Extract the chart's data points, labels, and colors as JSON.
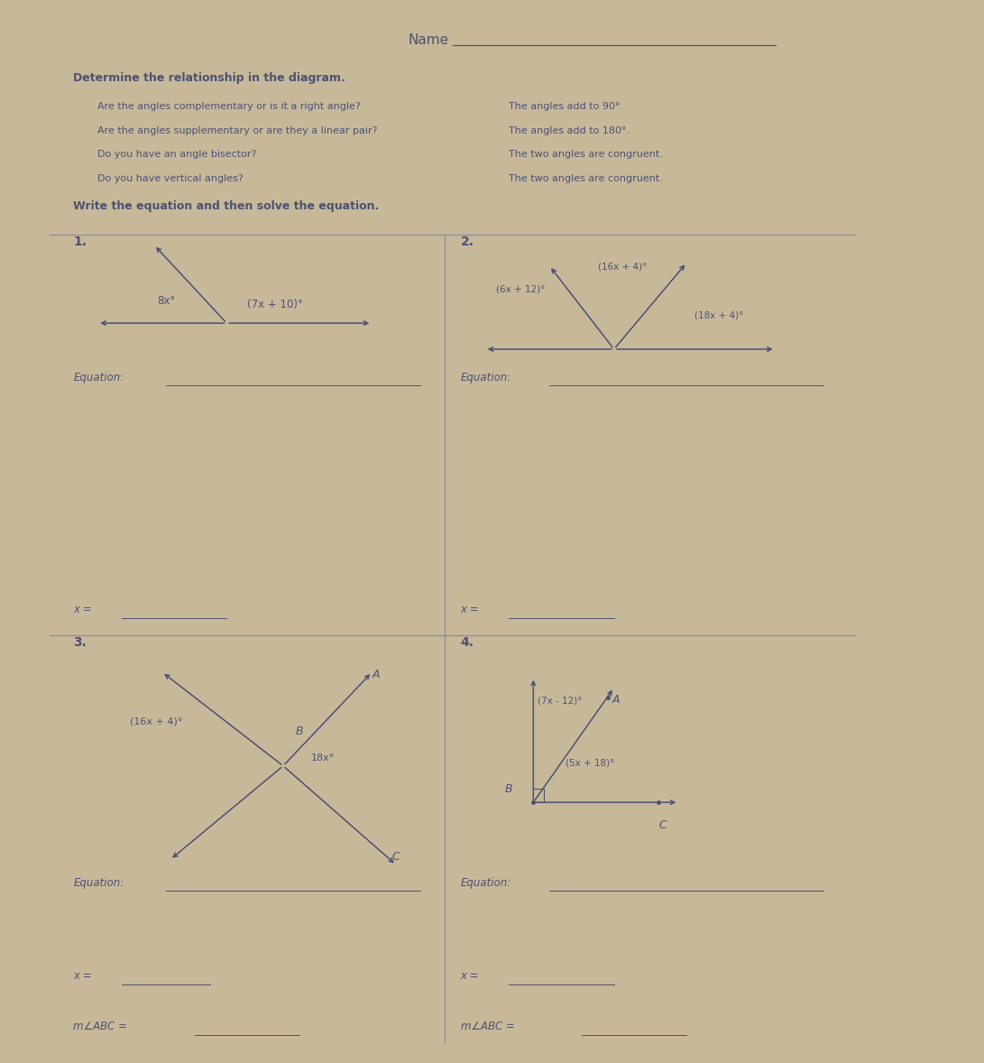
{
  "bg_color": "#c8b89a",
  "paper_color": "#f0efed",
  "text_color": "#4a5272",
  "line_color": "#4a5272",
  "divider_color": "#8a8a9a",
  "title": "Name",
  "header_bold": "Determine the relationship in the diagram.",
  "header_lines": [
    "Are the angles complementary or is it a right angle?",
    "Are the angles supplementary or are they a linear pair?",
    "Do you have an angle bisector?",
    "Do you have vertical angles?"
  ],
  "header_right": [
    "The angles add to 90°.",
    "The angles add to 180°.",
    "The two angles are congruent.",
    "The two angles are congruent."
  ],
  "write_eq": "Write the equation and then solve the equation.",
  "prob1_label": "1.",
  "prob1_angle1": "8x°",
  "prob1_angle2": "(7x + 10)°",
  "prob2_label": "2.",
  "prob2_angle1": "(6x + 12)°",
  "prob2_angle2": "(16x + 4)°",
  "prob2_angle3": "(18x + 4)°",
  "prob3_label": "3.",
  "prob3_angle1": "(16x + 4)°",
  "prob3_angle2": "18x°",
  "prob3_B": "B",
  "prob3_A": "A",
  "prob3_C": "C",
  "prob4_label": "4.",
  "prob4_angle1": "(7x - 12)°",
  "prob4_angle2": "(5x + 18)°",
  "prob4_A": "A",
  "prob4_B": "B",
  "prob4_C": "C",
  "equation_label": "Equation:",
  "x_eq_label": "x =",
  "mabc_label": "m∠ABC ="
}
